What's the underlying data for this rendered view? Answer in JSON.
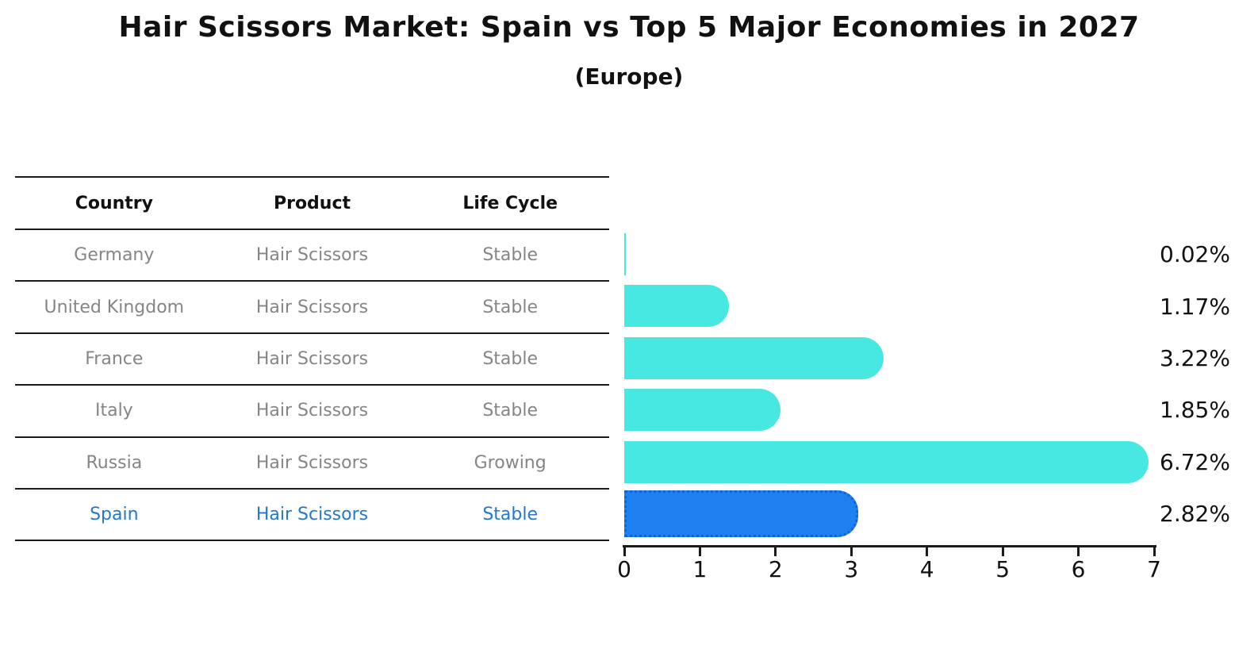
{
  "title": "Hair Scissors Market: Spain vs Top 5 Major Economies in 2027",
  "subtitle": "(Europe)",
  "table": {
    "headers": [
      "Country",
      "Product",
      "Life Cycle"
    ],
    "rows": [
      {
        "country": "Germany",
        "product": "Hair Scissors",
        "life_cycle": "Stable",
        "highlight": false
      },
      {
        "country": "United Kingdom",
        "product": "Hair Scissors",
        "life_cycle": "Stable",
        "highlight": false
      },
      {
        "country": "France",
        "product": "Hair Scissors",
        "life_cycle": "Stable",
        "highlight": false
      },
      {
        "country": "Italy",
        "product": "Hair Scissors",
        "life_cycle": "Stable",
        "highlight": false
      },
      {
        "country": "Russia",
        "product": "Hair Scissors",
        "life_cycle": "Growing",
        "highlight": false
      },
      {
        "country": "Spain",
        "product": "Hair Scissors",
        "life_cycle": "Stable",
        "highlight": true
      }
    ]
  },
  "chart_data": {
    "type": "bar",
    "orientation": "horizontal",
    "title": "Hair Scissors Market: Spain vs Top 5 Major Economies in 2027",
    "subtitle": "(Europe)",
    "categories": [
      "Germany",
      "United Kingdom",
      "France",
      "Italy",
      "Russia",
      "Spain"
    ],
    "values": [
      0.02,
      1.17,
      3.22,
      1.85,
      6.72,
      2.82
    ],
    "value_labels": [
      "0.02%",
      "1.17%",
      "3.22%",
      "1.85%",
      "6.72%",
      "2.82%"
    ],
    "unit": "%",
    "xlim": [
      0,
      7
    ],
    "x_ticks": [
      0,
      1,
      2,
      3,
      4,
      5,
      6,
      7
    ],
    "grid": false,
    "legend": null,
    "highlight_index": 5,
    "colors": {
      "default_bar": "#48E8E2",
      "highlight_bar": "#1F80F0",
      "highlight_bar_border": "#0E62DB",
      "highlight_text": "#2278CC",
      "table_text_gray": "#858585",
      "axis_and_text": "#111111"
    }
  }
}
